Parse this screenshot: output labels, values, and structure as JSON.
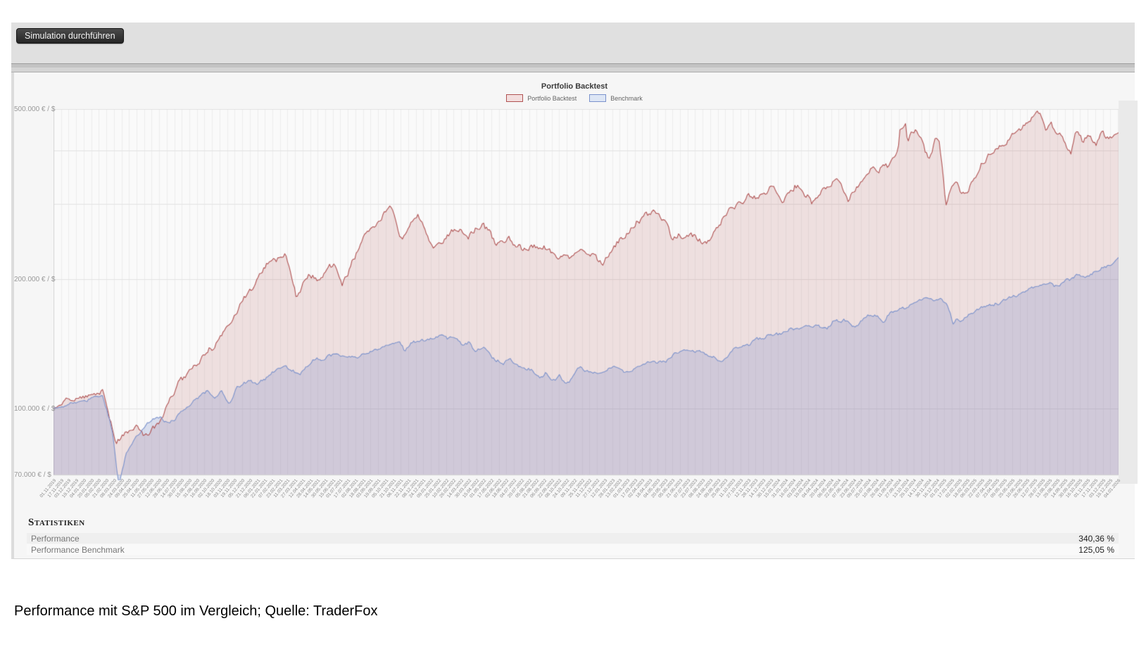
{
  "toolbar": {
    "button_label": "Simulation durchführen"
  },
  "chart": {
    "title": "Portfolio Backtest",
    "legend": [
      {
        "label": "Portfolio Backtest"
      },
      {
        "label": "Benchmark"
      }
    ]
  },
  "chart_data": {
    "type": "area",
    "title": "Portfolio Backtest",
    "y_scale": "log",
    "y_axis_max": 500000,
    "y_axis_min": 70000,
    "y_ticks": [
      {
        "label": "500.000 € / $",
        "value": 500000
      },
      {
        "label": "200.000 € / $",
        "value": 200000
      },
      {
        "label": "100.000 € / $",
        "value": 100000
      },
      {
        "label": "70.000 € / $",
        "value": 70000
      }
    ],
    "y_gridlines": [
      100000,
      200000,
      300000,
      400000,
      500000
    ],
    "x_axis": {
      "start_date": "2019-11-01",
      "end_date": "2026-01-05",
      "tick_count": 142,
      "tick_step_days": 16,
      "label_format": "dd.mm.yyyy",
      "first_labels_visible": [
        "01.11.2019",
        "18.11.2019",
        "04.12.2019",
        "19.12.2019"
      ],
      "grid": true
    },
    "series": [
      {
        "name": "Portfolio Backtest",
        "color": "#b05252",
        "fill": "rgba(182,85,85,0.16)",
        "swatch_fill": "#f3dede",
        "start_value": 100000,
        "end_value": 440360,
        "performance_pct": "340,36 %",
        "waypoints": [
          [
            0,
            100000
          ],
          [
            0.026,
            108000
          ],
          [
            0.046,
            112000
          ],
          [
            0.059,
            82000
          ],
          [
            0.066,
            88000
          ],
          [
            0.079,
            93000
          ],
          [
            0.086,
            87000
          ],
          [
            0.099,
            95000
          ],
          [
            0.119,
            117000
          ],
          [
            0.132,
            125000
          ],
          [
            0.152,
            142000
          ],
          [
            0.172,
            166000
          ],
          [
            0.188,
            194000
          ],
          [
            0.201,
            222000
          ],
          [
            0.212,
            230000
          ],
          [
            0.218,
            232000
          ],
          [
            0.228,
            185000
          ],
          [
            0.238,
            205000
          ],
          [
            0.251,
            200000
          ],
          [
            0.264,
            215000
          ],
          [
            0.271,
            190000
          ],
          [
            0.29,
            250000
          ],
          [
            0.304,
            270000
          ],
          [
            0.317,
            295000
          ],
          [
            0.327,
            250000
          ],
          [
            0.343,
            280000
          ],
          [
            0.356,
            240000
          ],
          [
            0.376,
            268000
          ],
          [
            0.39,
            255000
          ],
          [
            0.403,
            268000
          ],
          [
            0.416,
            240000
          ],
          [
            0.429,
            248000
          ],
          [
            0.442,
            235000
          ],
          [
            0.458,
            240000
          ],
          [
            0.475,
            228000
          ],
          [
            0.495,
            232000
          ],
          [
            0.515,
            218000
          ],
          [
            0.535,
            250000
          ],
          [
            0.555,
            280000
          ],
          [
            0.568,
            290000
          ],
          [
            0.581,
            250000
          ],
          [
            0.598,
            255000
          ],
          [
            0.614,
            243000
          ],
          [
            0.634,
            290000
          ],
          [
            0.647,
            300000
          ],
          [
            0.653,
            312000
          ],
          [
            0.662,
            308000
          ],
          [
            0.673,
            330000
          ],
          [
            0.686,
            310000
          ],
          [
            0.699,
            335000
          ],
          [
            0.712,
            300000
          ],
          [
            0.726,
            327000
          ],
          [
            0.736,
            350000
          ],
          [
            0.746,
            310000
          ],
          [
            0.766,
            355000
          ],
          [
            0.786,
            380000
          ],
          [
            0.793,
            410000
          ],
          [
            0.795,
            455000
          ],
          [
            0.8,
            477000
          ],
          [
            0.802,
            430000
          ],
          [
            0.806,
            460000
          ],
          [
            0.812,
            440000
          ],
          [
            0.818,
            400000
          ],
          [
            0.823,
            385000
          ],
          [
            0.828,
            430000
          ],
          [
            0.832,
            420000
          ],
          [
            0.836,
            330000
          ],
          [
            0.838,
            293000
          ],
          [
            0.842,
            320000
          ],
          [
            0.848,
            335000
          ],
          [
            0.852,
            310000
          ],
          [
            0.858,
            312000
          ],
          [
            0.865,
            340000
          ],
          [
            0.871,
            370000
          ],
          [
            0.884,
            392000
          ],
          [
            0.892,
            410000
          ],
          [
            0.905,
            440000
          ],
          [
            0.917,
            468000
          ],
          [
            0.927,
            492000
          ],
          [
            0.932,
            440000
          ],
          [
            0.937,
            465000
          ],
          [
            0.942,
            430000
          ],
          [
            0.947,
            440000
          ],
          [
            0.951,
            415000
          ],
          [
            0.955,
            400000
          ],
          [
            0.96,
            455000
          ],
          [
            0.966,
            430000
          ],
          [
            0.972,
            445000
          ],
          [
            0.978,
            420000
          ],
          [
            0.985,
            450000
          ],
          [
            0.99,
            430000
          ],
          [
            1,
            440360
          ]
        ]
      },
      {
        "name": "Benchmark",
        "color": "#7b92cc",
        "fill": "rgba(112,133,200,0.24)",
        "swatch_fill": "#dde6f5",
        "start_value": 100000,
        "end_value": 225050,
        "performance_pct": "125,05 %",
        "waypoints": [
          [
            0,
            100000
          ],
          [
            0.03,
            104000
          ],
          [
            0.046,
            108000
          ],
          [
            0.055,
            90000
          ],
          [
            0.0615,
            66000
          ],
          [
            0.068,
            78000
          ],
          [
            0.076,
            85000
          ],
          [
            0.086,
            90000
          ],
          [
            0.096,
            95000
          ],
          [
            0.109,
            93000
          ],
          [
            0.119,
            98000
          ],
          [
            0.132,
            104000
          ],
          [
            0.145,
            110000
          ],
          [
            0.152,
            106000
          ],
          [
            0.158,
            110000
          ],
          [
            0.165,
            103000
          ],
          [
            0.172,
            112000
          ],
          [
            0.185,
            117000
          ],
          [
            0.191,
            113000
          ],
          [
            0.205,
            121000
          ],
          [
            0.218,
            124000
          ],
          [
            0.231,
            120000
          ],
          [
            0.244,
            128000
          ],
          [
            0.257,
            131000
          ],
          [
            0.271,
            134000
          ],
          [
            0.284,
            133000
          ],
          [
            0.297,
            137000
          ],
          [
            0.311,
            140000
          ],
          [
            0.324,
            142000
          ],
          [
            0.33,
            136000
          ],
          [
            0.337,
            142000
          ],
          [
            0.35,
            146000
          ],
          [
            0.363,
            150000
          ],
          [
            0.37,
            146000
          ],
          [
            0.376,
            148000
          ],
          [
            0.383,
            140000
          ],
          [
            0.39,
            144000
          ],
          [
            0.396,
            138000
          ],
          [
            0.403,
            143000
          ],
          [
            0.41,
            136000
          ],
          [
            0.423,
            128000
          ],
          [
            0.429,
            132000
          ],
          [
            0.436,
            125000
          ],
          [
            0.449,
            122000
          ],
          [
            0.457,
            116000
          ],
          [
            0.462,
            120000
          ],
          [
            0.468,
            113000
          ],
          [
            0.475,
            118000
          ],
          [
            0.482,
            112000
          ],
          [
            0.489,
            120000
          ],
          [
            0.495,
            125000
          ],
          [
            0.502,
            121000
          ],
          [
            0.515,
            122000
          ],
          [
            0.528,
            126000
          ],
          [
            0.535,
            122000
          ],
          [
            0.548,
            124000
          ],
          [
            0.561,
            127000
          ],
          [
            0.574,
            129000
          ],
          [
            0.588,
            135000
          ],
          [
            0.601,
            136000
          ],
          [
            0.614,
            133000
          ],
          [
            0.627,
            128000
          ],
          [
            0.64,
            139000
          ],
          [
            0.654,
            143000
          ],
          [
            0.667,
            146000
          ],
          [
            0.68,
            149000
          ],
          [
            0.693,
            152000
          ],
          [
            0.706,
            155000
          ],
          [
            0.719,
            157000
          ],
          [
            0.726,
            153000
          ],
          [
            0.732,
            158000
          ],
          [
            0.746,
            160000
          ],
          [
            0.752,
            155000
          ],
          [
            0.759,
            162000
          ],
          [
            0.772,
            165000
          ],
          [
            0.779,
            160000
          ],
          [
            0.786,
            168000
          ],
          [
            0.799,
            172000
          ],
          [
            0.812,
            178000
          ],
          [
            0.819,
            182000
          ],
          [
            0.825,
            178000
          ],
          [
            0.832,
            180000
          ],
          [
            0.838,
            175000
          ],
          [
            0.842,
            168000
          ],
          [
            0.845,
            156000
          ],
          [
            0.848,
            162000
          ],
          [
            0.852,
            158000
          ],
          [
            0.858,
            164000
          ],
          [
            0.871,
            170000
          ],
          [
            0.884,
            176000
          ],
          [
            0.897,
            182000
          ],
          [
            0.911,
            188000
          ],
          [
            0.924,
            195000
          ],
          [
            0.937,
            198000
          ],
          [
            0.944,
            194000
          ],
          [
            0.95,
            200000
          ],
          [
            0.963,
            205000
          ],
          [
            0.97,
            202000
          ],
          [
            0.976,
            208000
          ],
          [
            0.983,
            212000
          ],
          [
            0.99,
            215000
          ],
          [
            0.995,
            219000
          ],
          [
            1,
            225050
          ]
        ]
      }
    ]
  },
  "stats": {
    "heading": "Statistiken",
    "rows": [
      {
        "label": "Performance",
        "value": "340,36 %"
      },
      {
        "label": "Performance Benchmark",
        "value": "125,05 %"
      }
    ]
  },
  "caption": "Performance mit S&P 500 im Vergleich; Quelle: TraderFox"
}
